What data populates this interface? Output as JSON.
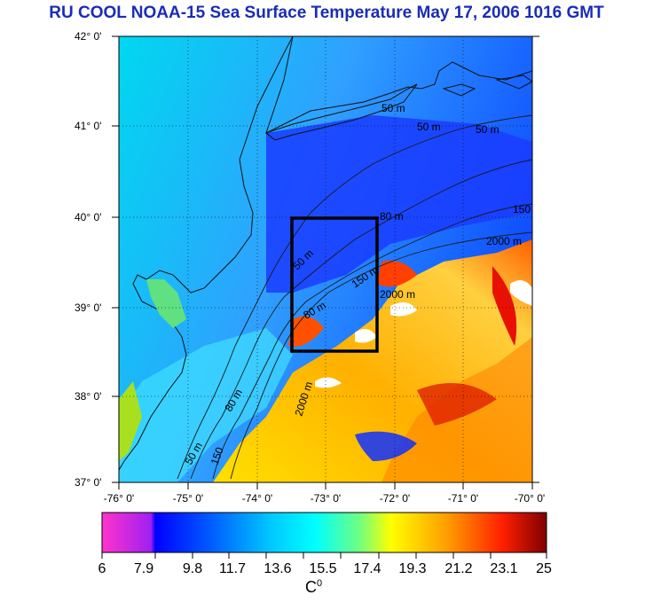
{
  "title": "RU COOL  NOAA-15 Sea Surface Temperature May 17, 2006 1016 GMT",
  "latitude_labels": [
    "42° 0'",
    "41° 0'",
    "40° 0'",
    "39° 0'",
    "38° 0'",
    "37° 0'"
  ],
  "longitude_labels": [
    "-76° 0'",
    "-75° 0'",
    "-74° 0'",
    "-73° 0'",
    "-72° 0'",
    "-71° 0'",
    "-70° 0'"
  ],
  "contour_labels": [
    "50 m",
    "50 m",
    "50 m",
    "150",
    "80 m",
    "2000 m",
    "2000 m",
    "2000 m",
    "150 m",
    "80 m",
    "50 m",
    "80 m",
    "150",
    "50 m"
  ],
  "colorbar": {
    "ticks": [
      "6",
      "7.9",
      "9.8",
      "11.7",
      "13.6",
      "15.5",
      "17.4",
      "19.3",
      "21.2",
      "23.1",
      "25"
    ],
    "unit": "C",
    "unit_superscript": "0",
    "colors": [
      "#ff33cc",
      "#a020f0",
      "#0000ff",
      "#0060ff",
      "#00c0ff",
      "#00ffff",
      "#60ff90",
      "#ffff00",
      "#ffa000",
      "#ff4000",
      "#e00000",
      "#800000"
    ]
  },
  "colors": {
    "title": "#1a2db5",
    "land": "#ffffff",
    "box": "#000000"
  }
}
